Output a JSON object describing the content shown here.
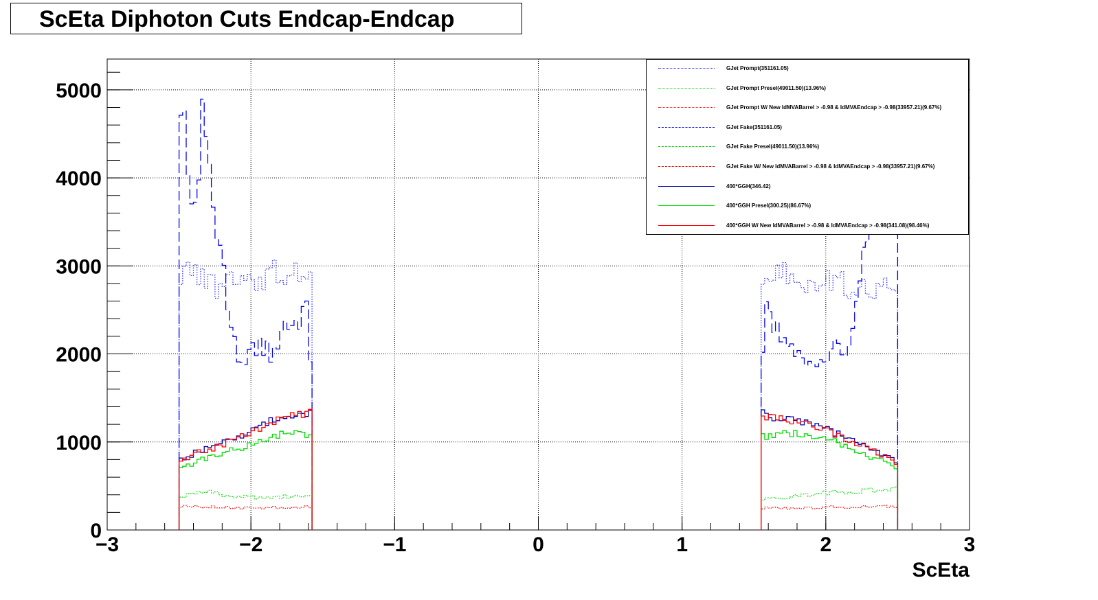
{
  "title": "ScEta Diphoton Cuts Endcap-Endcap",
  "chart_data": {
    "type": "line",
    "title": "ScEta Diphoton Cuts Endcap-Endcap",
    "xlabel": "ScEta",
    "ylabel": "",
    "xlim": [
      -3,
      3
    ],
    "ylim": [
      0,
      5350
    ],
    "grid": true,
    "x_ticks": [
      "−3",
      "−2",
      "−1",
      "0",
      "1",
      "2",
      "3"
    ],
    "y_ticks": [
      "0",
      "1000",
      "2000",
      "3000",
      "4000",
      "5000"
    ],
    "legend_position": "top-right",
    "bin_width": 0.025,
    "ranges": [
      [
        -2.5,
        -1.575
      ],
      [
        1.55,
        2.5
      ]
    ],
    "series": [
      {
        "name": "GJet Prompt(351161.05)",
        "color": "#3333ff",
        "style": "dotted",
        "profile": [
          [
            -2.5,
            2850
          ],
          [
            -2.4,
            2900
          ],
          [
            -2.3,
            2750
          ],
          [
            -2.2,
            2800
          ],
          [
            -2.1,
            2750
          ],
          [
            -2.0,
            2800
          ],
          [
            -1.9,
            2900
          ],
          [
            -1.8,
            2950
          ],
          [
            -1.7,
            2950
          ],
          [
            -1.6,
            2950
          ],
          [
            1.55,
            2850
          ],
          [
            1.6,
            2950
          ],
          [
            1.7,
            2900
          ],
          [
            1.8,
            2800
          ],
          [
            1.9,
            2800
          ],
          [
            2.0,
            2800
          ],
          [
            2.1,
            2850
          ],
          [
            2.2,
            2750
          ],
          [
            2.3,
            2700
          ],
          [
            2.4,
            2750
          ],
          [
            2.5,
            2750
          ]
        ]
      },
      {
        "name": "GJet Prompt Presel(49011.50)(13.96%)",
        "color": "#00dd00",
        "style": "dotted",
        "profile": [
          [
            -2.5,
            380
          ],
          [
            -2.4,
            420
          ],
          [
            -2.3,
            430
          ],
          [
            -2.2,
            400
          ],
          [
            -2.1,
            380
          ],
          [
            -2.0,
            370
          ],
          [
            -1.9,
            360
          ],
          [
            -1.8,
            370
          ],
          [
            -1.7,
            390
          ],
          [
            -1.6,
            400
          ],
          [
            1.55,
            350
          ],
          [
            1.6,
            360
          ],
          [
            1.8,
            380
          ],
          [
            2.0,
            420
          ],
          [
            2.2,
            440
          ],
          [
            2.3,
            450
          ],
          [
            2.4,
            460
          ],
          [
            2.5,
            470
          ]
        ]
      },
      {
        "name": "GJet Prompt W/ New IdMVABarrel > -0.98 & IdMVAEndcap > -0.98(33957.21)(9.67%)",
        "color": "#ff0000",
        "style": "dotted",
        "profile": [
          [
            -2.5,
            270
          ],
          [
            -2.3,
            260
          ],
          [
            -2.1,
            250
          ],
          [
            -1.9,
            250
          ],
          [
            -1.7,
            260
          ],
          [
            -1.6,
            260
          ],
          [
            1.55,
            250
          ],
          [
            1.8,
            250
          ],
          [
            2.0,
            260
          ],
          [
            2.2,
            260
          ],
          [
            2.4,
            270
          ],
          [
            2.5,
            270
          ]
        ]
      },
      {
        "name": "GJet Fake(351161.05)",
        "color": "#0000ee",
        "style": "dashed",
        "profile": [
          [
            -2.5,
            3500
          ],
          [
            -2.49,
            4900
          ],
          [
            -2.45,
            4500
          ],
          [
            -2.42,
            3700
          ],
          [
            -2.38,
            3800
          ],
          [
            -2.35,
            4300
          ],
          [
            -2.33,
            5000
          ],
          [
            -2.3,
            4200
          ],
          [
            -2.27,
            3550
          ],
          [
            -2.22,
            3300
          ],
          [
            -2.18,
            2800
          ],
          [
            -2.15,
            2400
          ],
          [
            -2.1,
            2000
          ],
          [
            -2.05,
            1900
          ],
          [
            -2.0,
            2000
          ],
          [
            -1.95,
            2050
          ],
          [
            -1.9,
            2100
          ],
          [
            -1.85,
            2000
          ],
          [
            -1.8,
            2200
          ],
          [
            -1.75,
            2300
          ],
          [
            -1.7,
            2300
          ],
          [
            -1.65,
            2450
          ],
          [
            -1.6,
            2500
          ],
          [
            -1.58,
            1400
          ],
          [
            1.55,
            1500
          ],
          [
            1.58,
            2600
          ],
          [
            1.65,
            2300
          ],
          [
            1.7,
            2100
          ],
          [
            1.8,
            2000
          ],
          [
            1.9,
            1950
          ],
          [
            2.0,
            2000
          ],
          [
            2.05,
            2100
          ],
          [
            2.1,
            2000
          ],
          [
            2.15,
            1950
          ],
          [
            2.2,
            2300
          ],
          [
            2.25,
            3000
          ],
          [
            2.3,
            3400
          ],
          [
            2.35,
            3700
          ]
        ]
      },
      {
        "name": "GJet Fake Presel(49011.50)(13.96%)",
        "color": "#00cc00",
        "style": "dashed",
        "profile": []
      },
      {
        "name": "GJet Fake W/ New IdMVABarrel > -0.98 & IdMVAEndcap > -0.98(33957.21)(9.67%)",
        "color": "#ff0000",
        "style": "dashed",
        "profile": []
      },
      {
        "name": "400*GGH(346.42)",
        "color": "#0000aa",
        "style": "solid",
        "profile": [
          [
            -2.5,
            780
          ],
          [
            -2.4,
            870
          ],
          [
            -2.3,
            920
          ],
          [
            -2.2,
            980
          ],
          [
            -2.1,
            1050
          ],
          [
            -2.0,
            1120
          ],
          [
            -1.9,
            1200
          ],
          [
            -1.8,
            1280
          ],
          [
            -1.7,
            1320
          ],
          [
            -1.6,
            1340
          ],
          [
            1.55,
            1330
          ],
          [
            1.6,
            1300
          ],
          [
            1.7,
            1270
          ],
          [
            1.8,
            1230
          ],
          [
            1.9,
            1190
          ],
          [
            2.0,
            1150
          ],
          [
            2.1,
            1080
          ],
          [
            2.2,
            1000
          ],
          [
            2.3,
            930
          ],
          [
            2.4,
            860
          ],
          [
            2.5,
            760
          ]
        ]
      },
      {
        "name": "400*GGH Presel(300.25)(86.67%)",
        "color": "#00dd00",
        "style": "solid",
        "profile": [
          [
            -2.5,
            680
          ],
          [
            -2.4,
            760
          ],
          [
            -2.3,
            820
          ],
          [
            -2.2,
            880
          ],
          [
            -2.1,
            920
          ],
          [
            -2.0,
            960
          ],
          [
            -1.9,
            1040
          ],
          [
            -1.8,
            1090
          ],
          [
            -1.7,
            1100
          ],
          [
            -1.6,
            1050
          ],
          [
            1.55,
            1060
          ],
          [
            1.6,
            1070
          ],
          [
            1.7,
            1110
          ],
          [
            1.8,
            1090
          ],
          [
            1.9,
            1060
          ],
          [
            2.0,
            1030
          ],
          [
            2.1,
            980
          ],
          [
            2.2,
            900
          ],
          [
            2.3,
            840
          ],
          [
            2.4,
            770
          ],
          [
            2.5,
            680
          ]
        ]
      },
      {
        "name": "400*GGH W/ New IdMVABarrel > -0.98 & IdMVAEndcap > -0.98(341.08)(98.46%)",
        "color": "#ff0000",
        "style": "solid",
        "profile": [
          [
            -2.5,
            770
          ],
          [
            -2.4,
            860
          ],
          [
            -2.3,
            910
          ],
          [
            -2.2,
            970
          ],
          [
            -2.1,
            1040
          ],
          [
            -2.0,
            1110
          ],
          [
            -1.9,
            1190
          ],
          [
            -1.8,
            1270
          ],
          [
            -1.7,
            1310
          ],
          [
            -1.6,
            1330
          ],
          [
            1.55,
            1320
          ],
          [
            1.6,
            1290
          ],
          [
            1.7,
            1260
          ],
          [
            1.8,
            1220
          ],
          [
            1.9,
            1180
          ],
          [
            2.0,
            1140
          ],
          [
            2.1,
            1070
          ],
          [
            2.2,
            990
          ],
          [
            2.3,
            920
          ],
          [
            2.4,
            850
          ],
          [
            2.5,
            750
          ]
        ]
      }
    ]
  }
}
